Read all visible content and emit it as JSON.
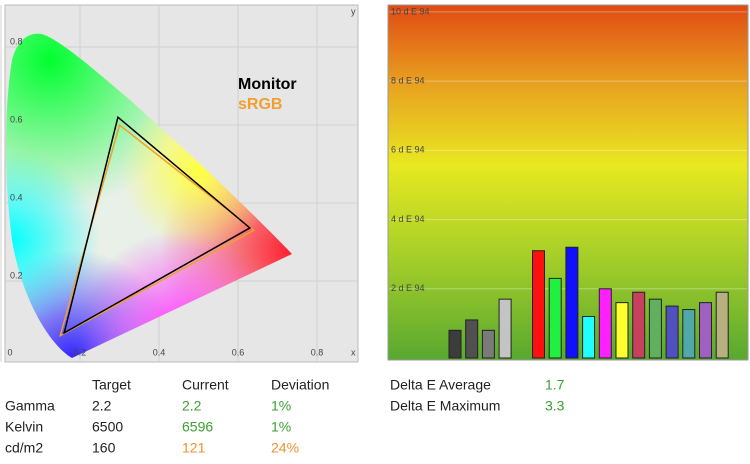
{
  "chart_data": [
    {
      "type": "chromaticity",
      "x_label": "x",
      "y_label": "y",
      "xlim": [
        0,
        0.89
      ],
      "ylim": [
        0,
        0.9
      ],
      "xticks": [
        0,
        0.2,
        0.4,
        0.6,
        0.8
      ],
      "yticks": [
        0.2,
        0.4,
        0.6,
        0.8
      ],
      "grid": true,
      "legend": "upper right",
      "series": [
        {
          "name": "Monitor",
          "color": "#000000",
          "x": [
            0.63,
            0.296,
            0.16
          ],
          "y": [
            0.336,
            0.62,
            0.067
          ]
        },
        {
          "name": "sRGB",
          "color": "#f0a030",
          "x": [
            0.64,
            0.3,
            0.15
          ],
          "y": [
            0.33,
            0.6,
            0.06
          ]
        }
      ]
    },
    {
      "type": "bar",
      "ylim": [
        0,
        10.2
      ],
      "yticks": [
        {
          "value": 2,
          "label": "2 d E 94"
        },
        {
          "value": 4,
          "label": "4 d E 94"
        },
        {
          "value": 6,
          "label": "6 d E 94"
        },
        {
          "value": 8,
          "label": "8 d E 94"
        },
        {
          "value": 10,
          "label": "10 d E 94"
        }
      ],
      "grid": true,
      "values": [
        0.8,
        1.1,
        0.8,
        1.7,
        null,
        3.1,
        2.3,
        3.2,
        1.2,
        2.0,
        1.6,
        1.9,
        1.7,
        1.5,
        1.4,
        1.6,
        1.9
      ],
      "colors": [
        "#3c3c3c",
        "#505050",
        "#7a7a7a",
        "#c4c4c4",
        null,
        "#ff1010",
        "#20f040",
        "#1010ff",
        "#20ffff",
        "#ff20ff",
        "#ffff30",
        "#c84060",
        "#60b060",
        "#5050c0",
        "#50a8a8",
        "#a060c0",
        "#b8b080"
      ]
    }
  ],
  "table": {
    "headers": [
      "Target",
      "Current",
      "Deviation"
    ],
    "rows": [
      [
        "Gamma",
        "2.2",
        "2.2",
        "1%"
      ],
      [
        "Kelvin",
        "6500",
        "6596",
        "1%"
      ],
      [
        "cd/m2",
        "160",
        "121",
        "24%"
      ]
    ]
  },
  "summary": [
    [
      "Delta E Average",
      "1.7"
    ],
    [
      "Delta E Maximum",
      "3.3"
    ]
  ]
}
